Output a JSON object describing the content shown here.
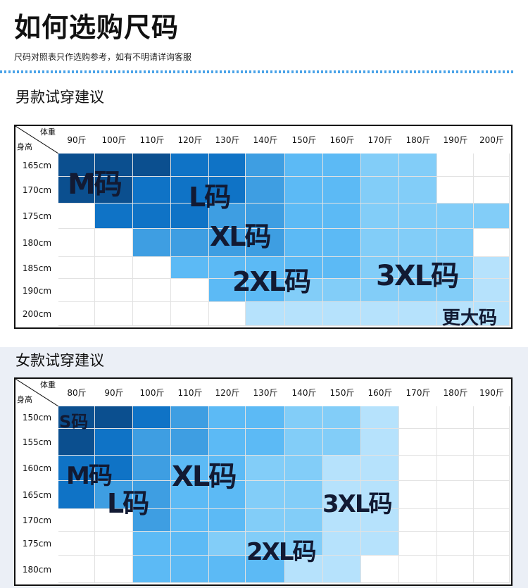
{
  "header": {
    "title": "如何选购尺码",
    "subtitle": "尺码对照表只作选购参考，如有不明请详询客服"
  },
  "colors": {
    "dark": "#0b4f8f",
    "blue": "#0f73c6",
    "mid": "#3e9ee2",
    "light": "#5cbaf5",
    "pale": "#82cdf8",
    "palest": "#b6e2fc"
  },
  "men": {
    "title": "男款试穿建议",
    "corner_weight": "体重",
    "corner_height": "身高",
    "weights": [
      "90斤",
      "100斤",
      "110斤",
      "120斤",
      "130斤",
      "140斤",
      "150斤",
      "160斤",
      "170斤",
      "180斤",
      "190斤",
      "200斤"
    ],
    "heights": [
      "165cm",
      "170cm",
      "175cm",
      "180cm",
      "185cm",
      "190cm",
      "200cm"
    ],
    "sizes": [
      "M码",
      "L码",
      "XL码",
      "2XL码",
      "3XL码",
      "更大码"
    ]
  },
  "women": {
    "title": "女款试穿建议",
    "corner_weight": "体重",
    "corner_height": "身高",
    "weights": [
      "80斤",
      "90斤",
      "100斤",
      "110斤",
      "120斤",
      "130斤",
      "140斤",
      "150斤",
      "160斤",
      "170斤",
      "180斤",
      "190斤"
    ],
    "heights": [
      "150cm",
      "155cm",
      "160cm",
      "165cm",
      "170cm",
      "175cm",
      "180cm"
    ],
    "sizes": [
      "S码",
      "M码",
      "L码",
      "XL码",
      "3XL码",
      "2XL码"
    ]
  }
}
